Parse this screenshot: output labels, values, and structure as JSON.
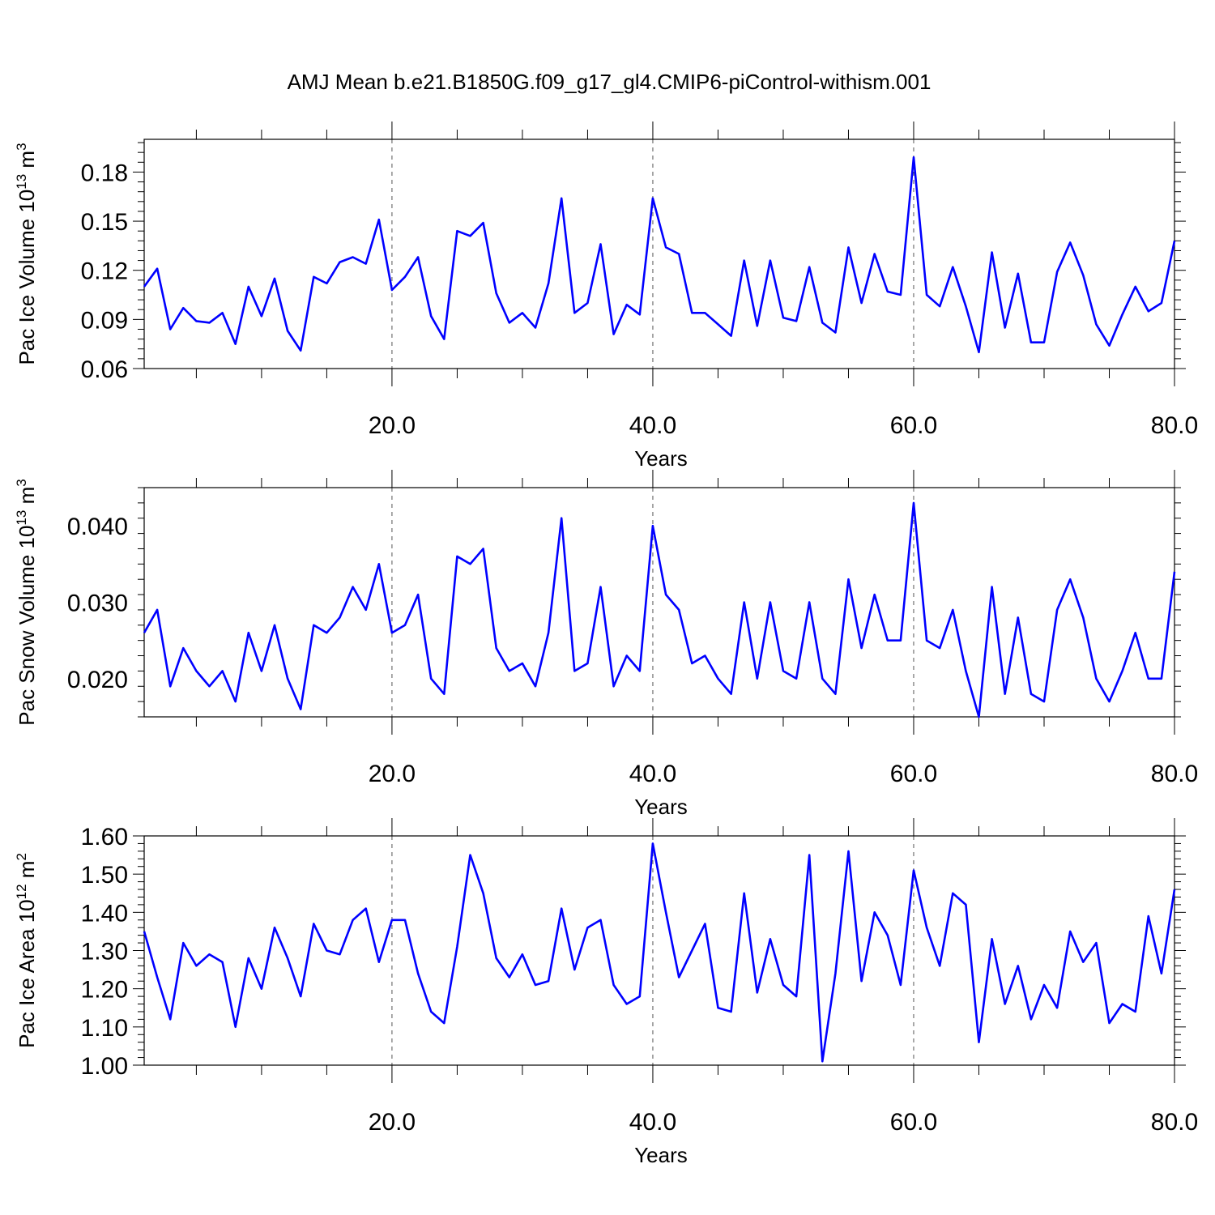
{
  "title": "AMJ Mean b.e21.B1850G.f09_g17_gl4.CMIP6-piControl-withism.001",
  "line_color": "#0000ff",
  "chart_data": [
    {
      "type": "line",
      "ylabel": "Pac Ice Volume 10",
      "ylabel_exp": "13",
      "ylabel_unit": "m",
      "ylabel_unit_exp": "3",
      "xlabel": "Years",
      "xlim": [
        1,
        80
      ],
      "ylim": [
        0.06,
        0.2
      ],
      "xticks": [
        20,
        40,
        60,
        80
      ],
      "xtick_labels": [
        "20.0",
        "40.0",
        "60.0",
        "80.0"
      ],
      "yticks": [
        0.06,
        0.09,
        0.12,
        0.15,
        0.18
      ],
      "ytick_labels": [
        "0.06",
        "0.09",
        "0.12",
        "0.15",
        "0.18"
      ],
      "grid": "dashed vertical at 20, 40, 60",
      "series": [
        {
          "x": [
            1,
            2,
            3,
            4,
            5,
            6,
            7,
            8,
            9,
            10,
            11,
            12,
            13,
            14,
            15,
            16,
            17,
            18,
            19,
            20,
            21,
            22,
            23,
            24,
            25,
            26,
            27,
            28,
            29,
            30,
            31,
            32,
            33,
            34,
            35,
            36,
            37,
            38,
            39,
            40,
            41,
            42,
            43,
            44,
            45,
            46,
            47,
            48,
            49,
            50,
            51,
            52,
            53,
            54,
            55,
            56,
            57,
            58,
            59,
            60,
            61,
            62,
            63,
            64,
            65,
            66,
            67,
            68,
            69,
            70,
            71,
            72,
            73,
            74,
            75,
            76,
            77,
            78,
            79,
            80
          ],
          "values": [
            0.11,
            0.121,
            0.084,
            0.097,
            0.089,
            0.088,
            0.094,
            0.075,
            0.11,
            0.092,
            0.115,
            0.083,
            0.071,
            0.116,
            0.112,
            0.125,
            0.128,
            0.124,
            0.151,
            0.108,
            0.116,
            0.128,
            0.092,
            0.078,
            0.144,
            0.141,
            0.149,
            0.106,
            0.088,
            0.094,
            0.085,
            0.112,
            0.164,
            0.094,
            0.1,
            0.136,
            0.081,
            0.099,
            0.093,
            0.164,
            0.134,
            0.13,
            0.094,
            0.094,
            0.087,
            0.08,
            0.126,
            0.086,
            0.126,
            0.091,
            0.089,
            0.122,
            0.088,
            0.082,
            0.134,
            0.1,
            0.13,
            0.107,
            0.105,
            0.189,
            0.105,
            0.098,
            0.122,
            0.098,
            0.07,
            0.131,
            0.085,
            0.118,
            0.076,
            0.076,
            0.119,
            0.137,
            0.117,
            0.087,
            0.074,
            0.093,
            0.11,
            0.095,
            0.1,
            0.138
          ]
        }
      ]
    },
    {
      "type": "line",
      "ylabel": "Pac Snow Volume 10",
      "ylabel_exp": "13",
      "ylabel_unit": "m",
      "ylabel_unit_exp": "3",
      "xlabel": "Years",
      "xlim": [
        1,
        80
      ],
      "ylim": [
        0.015,
        0.045
      ],
      "xticks": [
        20,
        40,
        60,
        80
      ],
      "xtick_labels": [
        "20.0",
        "40.0",
        "60.0",
        "80.0"
      ],
      "yticks": [
        0.02,
        0.03,
        0.04
      ],
      "ytick_labels": [
        "0.020",
        "0.030",
        "0.040"
      ],
      "grid": "dashed vertical at 20, 40, 60",
      "series": [
        {
          "x": [
            1,
            2,
            3,
            4,
            5,
            6,
            7,
            8,
            9,
            10,
            11,
            12,
            13,
            14,
            15,
            16,
            17,
            18,
            19,
            20,
            21,
            22,
            23,
            24,
            25,
            26,
            27,
            28,
            29,
            30,
            31,
            32,
            33,
            34,
            35,
            36,
            37,
            38,
            39,
            40,
            41,
            42,
            43,
            44,
            45,
            46,
            47,
            48,
            49,
            50,
            51,
            52,
            53,
            54,
            55,
            56,
            57,
            58,
            59,
            60,
            61,
            62,
            63,
            64,
            65,
            66,
            67,
            68,
            69,
            70,
            71,
            72,
            73,
            74,
            75,
            76,
            77,
            78,
            79,
            80
          ],
          "values": [
            0.026,
            0.029,
            0.019,
            0.024,
            0.021,
            0.019,
            0.021,
            0.017,
            0.026,
            0.021,
            0.027,
            0.02,
            0.016,
            0.027,
            0.026,
            0.028,
            0.032,
            0.029,
            0.035,
            0.026,
            0.027,
            0.031,
            0.02,
            0.018,
            0.036,
            0.035,
            0.037,
            0.024,
            0.021,
            0.022,
            0.019,
            0.026,
            0.041,
            0.021,
            0.022,
            0.032,
            0.019,
            0.023,
            0.021,
            0.04,
            0.031,
            0.029,
            0.022,
            0.023,
            0.02,
            0.018,
            0.03,
            0.02,
            0.03,
            0.021,
            0.02,
            0.03,
            0.02,
            0.018,
            0.033,
            0.024,
            0.031,
            0.025,
            0.025,
            0.043,
            0.025,
            0.024,
            0.029,
            0.021,
            0.015,
            0.032,
            0.018,
            0.028,
            0.018,
            0.017,
            0.029,
            0.033,
            0.028,
            0.02,
            0.017,
            0.021,
            0.026,
            0.02,
            0.02,
            0.034
          ]
        }
      ]
    },
    {
      "type": "line",
      "ylabel": "Pac Ice Area 10",
      "ylabel_exp": "12",
      "ylabel_unit": "m",
      "ylabel_unit_exp": "2",
      "xlabel": "Years",
      "xlim": [
        1,
        80
      ],
      "ylim": [
        1.0,
        1.6
      ],
      "xticks": [
        20,
        40,
        60,
        80
      ],
      "xtick_labels": [
        "20.0",
        "40.0",
        "60.0",
        "80.0"
      ],
      "yticks": [
        1.0,
        1.1,
        1.2,
        1.3,
        1.4,
        1.5,
        1.6
      ],
      "ytick_labels": [
        "1.00",
        "1.10",
        "1.20",
        "1.30",
        "1.40",
        "1.50",
        "1.60"
      ],
      "grid": "dashed vertical at 20, 40, 60",
      "series": [
        {
          "x": [
            1,
            2,
            3,
            4,
            5,
            6,
            7,
            8,
            9,
            10,
            11,
            12,
            13,
            14,
            15,
            16,
            17,
            18,
            19,
            20,
            21,
            22,
            23,
            24,
            25,
            26,
            27,
            28,
            29,
            30,
            31,
            32,
            33,
            34,
            35,
            36,
            37,
            38,
            39,
            40,
            41,
            42,
            43,
            44,
            45,
            46,
            47,
            48,
            49,
            50,
            51,
            52,
            53,
            54,
            55,
            56,
            57,
            58,
            59,
            60,
            61,
            62,
            63,
            64,
            65,
            66,
            67,
            68,
            69,
            70,
            71,
            72,
            73,
            74,
            75,
            76,
            77,
            78,
            79,
            80
          ],
          "values": [
            1.35,
            1.23,
            1.12,
            1.32,
            1.26,
            1.29,
            1.27,
            1.1,
            1.28,
            1.2,
            1.36,
            1.28,
            1.18,
            1.37,
            1.3,
            1.29,
            1.38,
            1.41,
            1.27,
            1.38,
            1.38,
            1.24,
            1.14,
            1.11,
            1.31,
            1.55,
            1.45,
            1.28,
            1.23,
            1.29,
            1.21,
            1.22,
            1.41,
            1.25,
            1.36,
            1.38,
            1.21,
            1.16,
            1.18,
            1.58,
            1.4,
            1.23,
            1.3,
            1.37,
            1.15,
            1.14,
            1.45,
            1.19,
            1.33,
            1.21,
            1.18,
            1.55,
            1.01,
            1.24,
            1.56,
            1.22,
            1.4,
            1.34,
            1.21,
            1.51,
            1.36,
            1.26,
            1.45,
            1.42,
            1.06,
            1.33,
            1.16,
            1.26,
            1.12,
            1.21,
            1.15,
            1.35,
            1.27,
            1.32,
            1.11,
            1.16,
            1.14,
            1.39,
            1.24,
            1.46
          ]
        }
      ]
    }
  ]
}
